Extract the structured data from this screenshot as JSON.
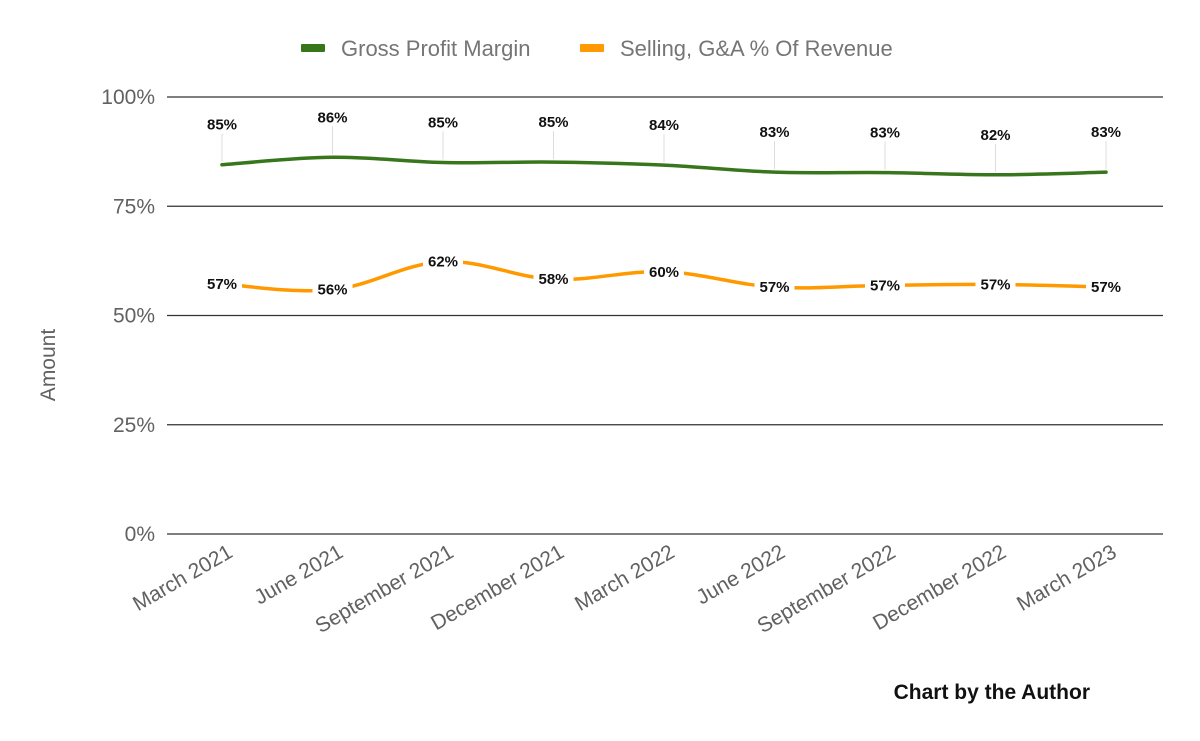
{
  "chart_data": {
    "type": "line",
    "title": "",
    "categories": [
      "March 2021",
      "June 2021",
      "September 2021",
      "December 2021",
      "March 2022",
      "June 2022",
      "September 2022",
      "December 2022",
      "March 2023"
    ],
    "series": [
      {
        "name": "Gross Profit Margin",
        "color": "#38761d",
        "values": [
          84.5,
          86.2,
          85.0,
          85.1,
          84.4,
          82.8,
          82.7,
          82.2,
          82.8
        ],
        "labels": [
          "85%",
          "86%",
          "85%",
          "85%",
          "84%",
          "83%",
          "83%",
          "82%",
          "83%"
        ]
      },
      {
        "name": "Selling, G&A % Of Revenue",
        "color": "#ff9900",
        "values": [
          57.2,
          55.9,
          62.3,
          58.3,
          60.0,
          56.5,
          56.9,
          57.1,
          56.5
        ],
        "labels": [
          "57%",
          "56%",
          "62%",
          "58%",
          "60%",
          "57%",
          "57%",
          "57%",
          "57%"
        ]
      }
    ],
    "xlabel": "",
    "ylabel": "Amount",
    "ylim": [
      0,
      100
    ],
    "yticks": [
      0,
      25,
      50,
      75,
      100
    ],
    "ytick_labels": [
      "0%",
      "25%",
      "50%",
      "75%",
      "100%"
    ],
    "grid": true,
    "legend_position": "top",
    "credit": "Chart by the Author"
  }
}
